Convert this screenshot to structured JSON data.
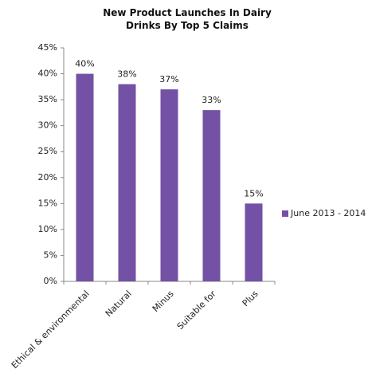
{
  "chart_data": {
    "type": "bar",
    "title": "New Product Launches In Dairy Drinks By Top 5 Claims",
    "categories": [
      "Ethical & environmental",
      "Natural",
      "Minus",
      "Suitable for",
      "Plus"
    ],
    "series": [
      {
        "name": "June 2013 - 2014",
        "color": "#7352a5",
        "values": [
          40,
          38,
          37,
          33,
          15
        ],
        "value_labels": [
          "40%",
          "38%",
          "37%",
          "33%",
          "15%"
        ]
      }
    ],
    "ylim": [
      0,
      45
    ],
    "yticks": [
      {
        "value": 0,
        "label": "0%"
      },
      {
        "value": 5,
        "label": "5%"
      },
      {
        "value": 10,
        "label": "10%"
      },
      {
        "value": 15,
        "label": "15%"
      },
      {
        "value": 20,
        "label": "20%"
      },
      {
        "value": 25,
        "label": "25%"
      },
      {
        "value": 30,
        "label": "30%"
      },
      {
        "value": 35,
        "label": "35%"
      },
      {
        "value": 40,
        "label": "40%"
      },
      {
        "value": 45,
        "label": "45%"
      }
    ],
    "grid": false,
    "legend": "right"
  }
}
